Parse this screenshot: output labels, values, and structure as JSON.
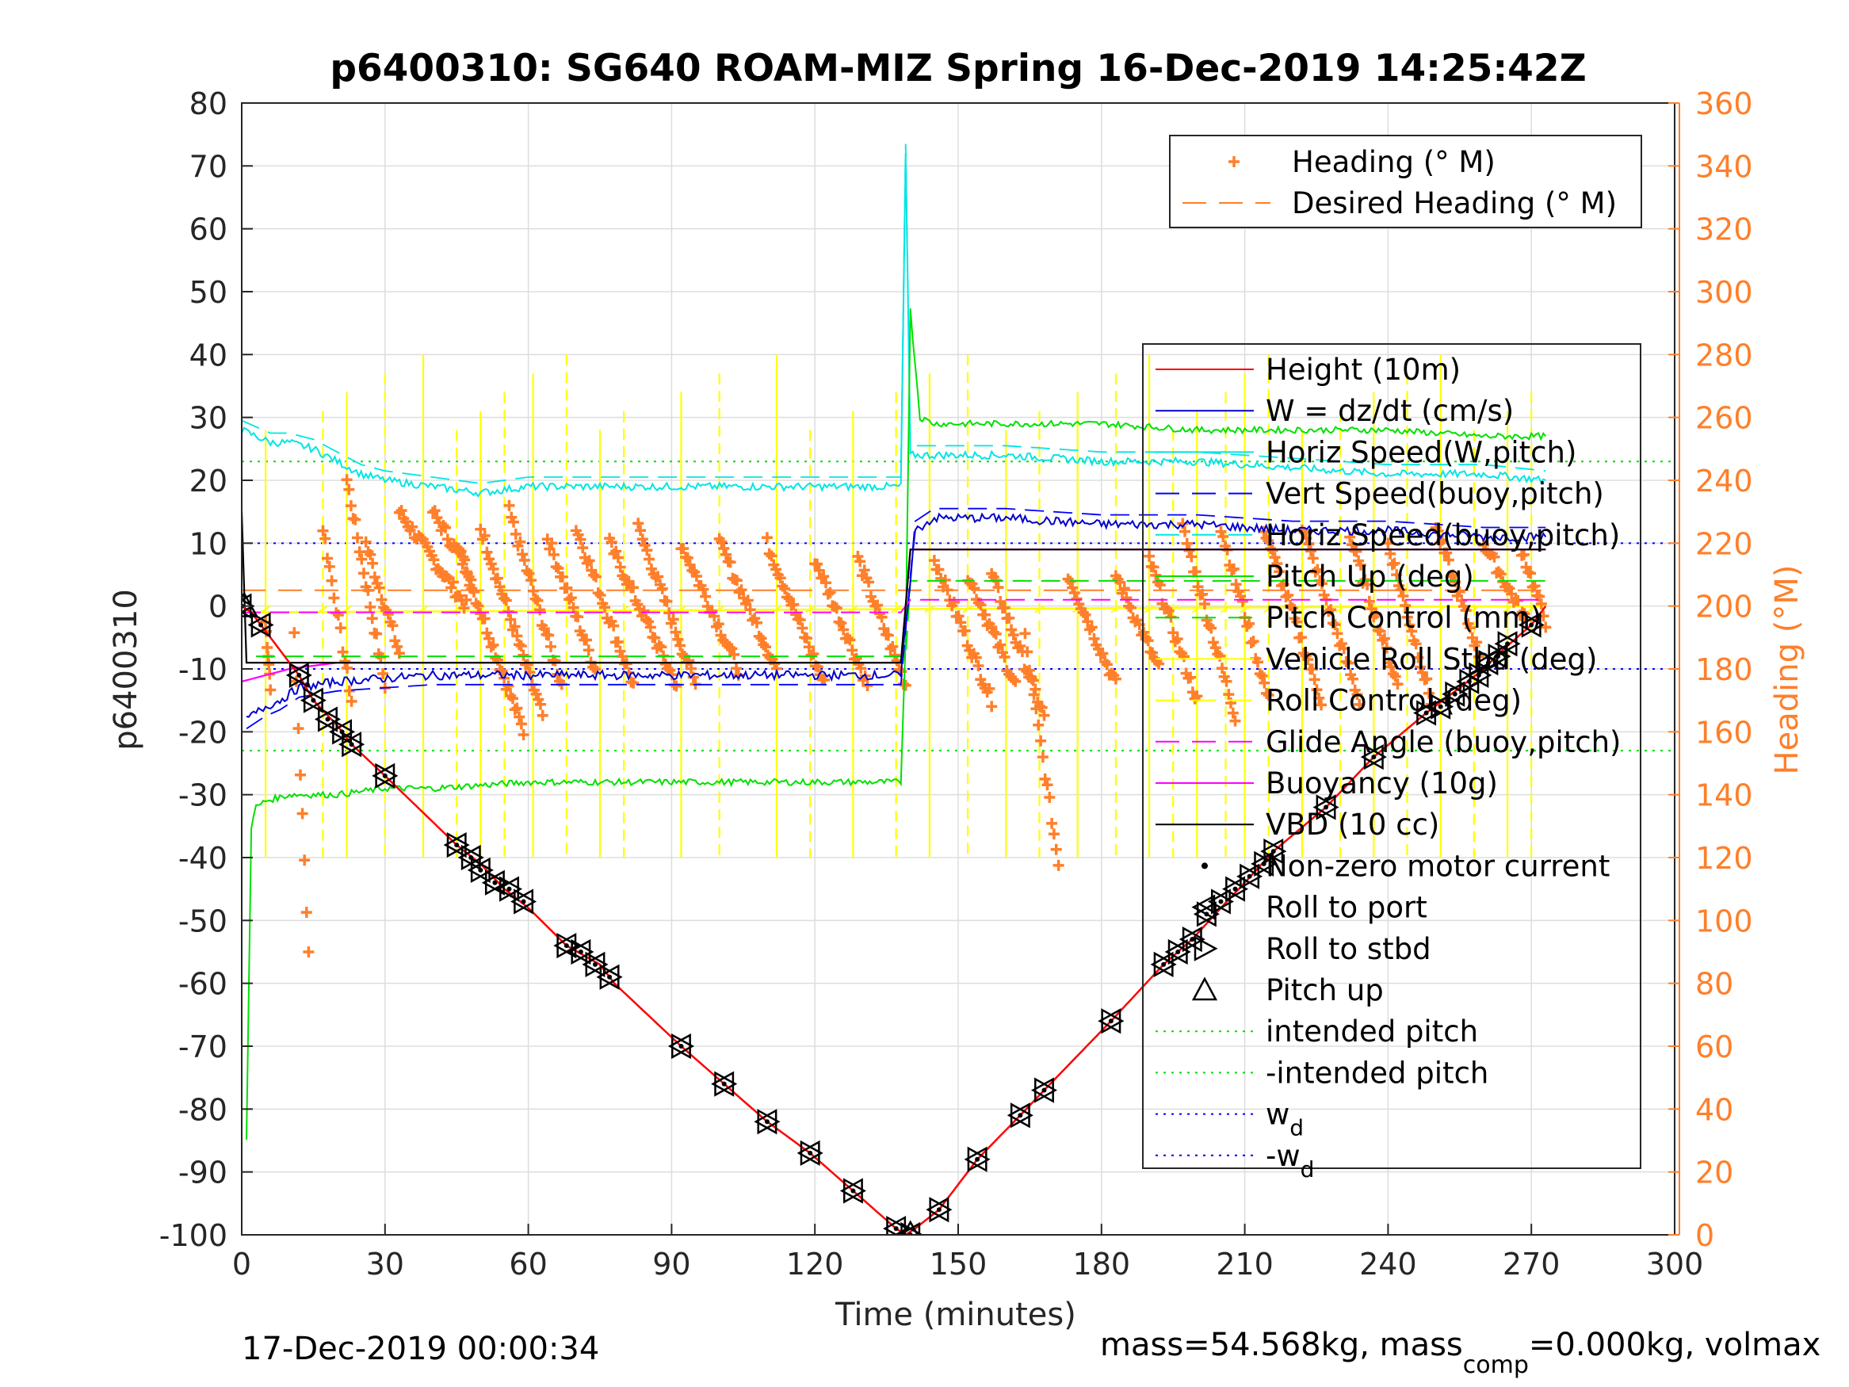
{
  "chart_data": {
    "type": "line",
    "title": "p6400310: SG640 ROAM-MIZ Spring 16-Dec-2019 14:25:42Z",
    "xlabel": "Time (minutes)",
    "ylabel": "p6400310",
    "y2label": "Heading (°M)",
    "xlim": [
      0,
      300
    ],
    "ylim": [
      -100,
      80
    ],
    "y2lim": [
      0,
      360
    ],
    "xticks": [
      "0",
      "30",
      "60",
      "90",
      "120",
      "150",
      "180",
      "210",
      "240",
      "270",
      "300"
    ],
    "yticks": [
      "80",
      "70",
      "60",
      "50",
      "40",
      "30",
      "20",
      "10",
      "0",
      "-10",
      "-20",
      "-30",
      "-40",
      "-50",
      "-60",
      "-70",
      "-80",
      "-90",
      "-100"
    ],
    "y2ticks": [
      "360",
      "340",
      "320",
      "300",
      "280",
      "260",
      "240",
      "220",
      "200",
      "180",
      "160",
      "140",
      "120",
      "100",
      "80",
      "60",
      "40",
      "20",
      "0"
    ],
    "grid": true,
    "footer_left": "17-Dec-2019 00:00:34",
    "footer_right": {
      "prefix": "mass=54.568kg, mass",
      "sub": "comp",
      "suffix": "=0.000kg, volmax"
    },
    "colors": {
      "heading": "#ff7f2a",
      "height": "#ff0000",
      "w": "#0000cc",
      "horiz": "#00e5e5",
      "vert": "#0000ff",
      "pitch": "#00e000",
      "roll": "#ffff00",
      "glide": "#ff00ff",
      "vbd": "#000000"
    },
    "legend_heading": [
      {
        "label": "Heading (° M)",
        "color": "#ff7f2a",
        "style": "plus"
      },
      {
        "label": "Desired Heading (° M)",
        "color": "#ff7f2a",
        "style": "dash"
      }
    ],
    "legend_main": [
      {
        "label": "Height (10m)",
        "color": "#ff0000",
        "style": "line"
      },
      {
        "label": "W = dz/dt (cm/s)",
        "color": "#0000cc",
        "style": "line"
      },
      {
        "label": "Horiz Speed(W,pitch)",
        "color": "#00e5e5",
        "style": "line"
      },
      {
        "label": "Vert Speed(buoy,pitch)",
        "color": "#0000ff",
        "style": "dash"
      },
      {
        "label": "Horiz Speed(buoy,pitch)",
        "color": "#00e5e5",
        "style": "dash"
      },
      {
        "label": "Pitch Up (deg)",
        "color": "#00e000",
        "style": "line"
      },
      {
        "label": "Pitch Control (mm)",
        "color": "#00e000",
        "style": "dash"
      },
      {
        "label": "Vehicle Roll Stbd (deg)",
        "color": "#ffff00",
        "style": "line"
      },
      {
        "label": "Roll Control (deg)",
        "color": "#ffff00",
        "style": "dash"
      },
      {
        "label": "Glide Angle (buoy,pitch)",
        "color": "#ff00ff",
        "style": "dash"
      },
      {
        "label": "Buoyancy (10g)",
        "color": "#ff00ff",
        "style": "line"
      },
      {
        "label": "VBD (10 cc)",
        "color": "#000000",
        "style": "line"
      },
      {
        "label": "Non-zero motor current",
        "color": "#000000",
        "style": "dot"
      },
      {
        "label": "Roll to port",
        "color": "#000000",
        "style": "tri-left"
      },
      {
        "label": "Roll to stbd",
        "color": "#000000",
        "style": "tri-right"
      },
      {
        "label": "Pitch up",
        "color": "#000000",
        "style": "tri-up"
      },
      {
        "label": "intended pitch",
        "color": "#00e000",
        "style": "dot-line"
      },
      {
        "label": "-intended pitch",
        "color": "#00e000",
        "style": "dot-line"
      },
      {
        "label": "w",
        "sub": "d",
        "color": "#0000ff",
        "style": "dot-line"
      },
      {
        "label": "-w",
        "sub": "d",
        "color": "#0000ff",
        "style": "dot-line"
      }
    ],
    "reference_lines": {
      "intended_pitch": 23,
      "w_d": 10
    },
    "height_profile": [
      [
        0,
        0
      ],
      [
        2,
        -1
      ],
      [
        4,
        -3
      ],
      [
        12,
        -11
      ],
      [
        15,
        -15
      ],
      [
        20,
        -19
      ],
      [
        23,
        -22
      ],
      [
        30,
        -27
      ],
      [
        45,
        -38
      ],
      [
        50,
        -41
      ],
      [
        55,
        -45
      ],
      [
        60,
        -48
      ],
      [
        68,
        -54
      ],
      [
        75,
        -57
      ],
      [
        78,
        -60
      ],
      [
        92,
        -70
      ],
      [
        101,
        -76
      ],
      [
        110,
        -82
      ],
      [
        119,
        -87
      ],
      [
        128,
        -93
      ],
      [
        137,
        -99
      ],
      [
        139,
        -100
      ],
      [
        141,
        -99
      ],
      [
        146,
        -96
      ],
      [
        154,
        -88
      ],
      [
        163,
        -81
      ],
      [
        168,
        -77
      ],
      [
        182,
        -66
      ],
      [
        193,
        -57
      ],
      [
        199,
        -53
      ],
      [
        205,
        -48
      ],
      [
        210,
        -44
      ],
      [
        216,
        -39
      ],
      [
        227,
        -32
      ],
      [
        237,
        -24
      ],
      [
        248,
        -17
      ],
      [
        255,
        -13
      ],
      [
        260,
        -10
      ],
      [
        264,
        -7
      ],
      [
        270,
        -3
      ],
      [
        273,
        0
      ]
    ],
    "markers": [
      [
        0,
        0
      ],
      [
        4,
        -3
      ],
      [
        12,
        -11
      ],
      [
        15,
        -15
      ],
      [
        18,
        -18
      ],
      [
        21,
        -20
      ],
      [
        23,
        -22
      ],
      [
        30,
        -27
      ],
      [
        45,
        -38
      ],
      [
        48,
        -40
      ],
      [
        50,
        -42
      ],
      [
        53,
        -44
      ],
      [
        56,
        -45
      ],
      [
        59,
        -47
      ],
      [
        68,
        -54
      ],
      [
        71,
        -55
      ],
      [
        74,
        -57
      ],
      [
        77,
        -59
      ],
      [
        92,
        -70
      ],
      [
        101,
        -76
      ],
      [
        110,
        -82
      ],
      [
        119,
        -87
      ],
      [
        128,
        -93
      ],
      [
        137,
        -99
      ],
      [
        140,
        -100
      ],
      [
        146,
        -96
      ],
      [
        154,
        -88
      ],
      [
        163,
        -81
      ],
      [
        168,
        -77
      ],
      [
        182,
        -66
      ],
      [
        193,
        -57
      ],
      [
        196,
        -55
      ],
      [
        199,
        -53
      ],
      [
        202,
        -49
      ],
      [
        205,
        -47
      ],
      [
        208,
        -45
      ],
      [
        211,
        -43
      ],
      [
        214,
        -41
      ],
      [
        216,
        -39
      ],
      [
        227,
        -32
      ],
      [
        237,
        -24
      ],
      [
        248,
        -17
      ],
      [
        251,
        -16
      ],
      [
        254,
        -14
      ],
      [
        257,
        -12
      ],
      [
        259,
        -11
      ],
      [
        261,
        -9
      ],
      [
        263,
        -8
      ],
      [
        265,
        -6
      ],
      [
        270,
        -3
      ]
    ],
    "w_profile": [
      [
        1,
        -18
      ],
      [
        3,
        -17
      ],
      [
        5,
        -16
      ],
      [
        8,
        -15
      ],
      [
        12,
        -13
      ],
      [
        20,
        -12
      ],
      [
        40,
        -11
      ],
      [
        60,
        -11
      ],
      [
        80,
        -11
      ],
      [
        100,
        -11
      ],
      [
        120,
        -11
      ],
      [
        138,
        -11
      ],
      [
        141,
        12
      ],
      [
        145,
        14
      ],
      [
        160,
        14
      ],
      [
        180,
        13
      ],
      [
        200,
        13
      ],
      [
        220,
        12
      ],
      [
        240,
        12
      ],
      [
        260,
        11
      ],
      [
        273,
        11
      ]
    ],
    "horiz_profile": [
      [
        0,
        28
      ],
      [
        3,
        27
      ],
      [
        6,
        26
      ],
      [
        10,
        26
      ],
      [
        15,
        25
      ],
      [
        20,
        23
      ],
      [
        25,
        21
      ],
      [
        30,
        20
      ],
      [
        40,
        19
      ],
      [
        50,
        18
      ],
      [
        60,
        19
      ],
      [
        70,
        19
      ],
      [
        80,
        19
      ],
      [
        90,
        19
      ],
      [
        100,
        19
      ],
      [
        110,
        19
      ],
      [
        120,
        19
      ],
      [
        130,
        19
      ],
      [
        138,
        19
      ],
      [
        139,
        72
      ],
      [
        140,
        24
      ],
      [
        143,
        24
      ],
      [
        160,
        24
      ],
      [
        180,
        23
      ],
      [
        200,
        23
      ],
      [
        220,
        22
      ],
      [
        240,
        21
      ],
      [
        260,
        21
      ],
      [
        273,
        20
      ]
    ],
    "pitch_profile": [
      [
        1,
        -85
      ],
      [
        2,
        -35
      ],
      [
        3,
        -32
      ],
      [
        5,
        -31
      ],
      [
        10,
        -30
      ],
      [
        20,
        -30
      ],
      [
        30,
        -29
      ],
      [
        40,
        -29
      ],
      [
        60,
        -28
      ],
      [
        80,
        -28
      ],
      [
        100,
        -28
      ],
      [
        120,
        -28
      ],
      [
        138,
        -28
      ],
      [
        139,
        -5
      ],
      [
        140,
        47
      ],
      [
        142,
        30
      ],
      [
        145,
        29
      ],
      [
        160,
        29
      ],
      [
        180,
        29
      ],
      [
        200,
        28
      ],
      [
        220,
        28
      ],
      [
        240,
        28
      ],
      [
        260,
        27
      ],
      [
        273,
        27
      ]
    ],
    "vbd_profile": [
      [
        0,
        15
      ],
      [
        1,
        -9
      ],
      [
        20,
        -9
      ],
      [
        40,
        -9
      ],
      [
        60,
        -9
      ],
      [
        80,
        -9
      ],
      [
        100,
        -9
      ],
      [
        120,
        -9
      ],
      [
        138,
        -9
      ],
      [
        140,
        9
      ],
      [
        160,
        9
      ],
      [
        180,
        9
      ],
      [
        200,
        9
      ],
      [
        220,
        9
      ],
      [
        240,
        9
      ],
      [
        260,
        9
      ],
      [
        273,
        9
      ]
    ],
    "buoy_profile": [
      [
        0,
        -12
      ],
      [
        5,
        -11
      ],
      [
        10,
        -10
      ],
      [
        20,
        -9
      ],
      [
        60,
        -9
      ],
      [
        100,
        -9
      ],
      [
        138,
        -9
      ],
      [
        140,
        9
      ],
      [
        273,
        9
      ]
    ],
    "glide_profile": [
      [
        0,
        -1
      ],
      [
        138,
        -1
      ],
      [
        140,
        1
      ],
      [
        273,
        1
      ]
    ],
    "roll_spikes": [
      5,
      17,
      22,
      30,
      38,
      45,
      50,
      55,
      61,
      68,
      75,
      80,
      92,
      100,
      112,
      119,
      128,
      137,
      144,
      152,
      160,
      167,
      175,
      183,
      190,
      195,
      200,
      206,
      210,
      215,
      222,
      230,
      237,
      244,
      251,
      258,
      265,
      270
    ],
    "heading_segments": [
      [
        5,
        195,
        1,
        175
      ],
      [
        11,
        190,
        3,
        90
      ],
      [
        17,
        225,
        6,
        170
      ],
      [
        22,
        240,
        8,
        175
      ],
      [
        26,
        220,
        7,
        185
      ],
      [
        33,
        230,
        14,
        200
      ],
      [
        40,
        230,
        8,
        210
      ],
      [
        45,
        220,
        14,
        160
      ],
      [
        50,
        225,
        13,
        165
      ],
      [
        56,
        230,
        11,
        175
      ],
      [
        64,
        222,
        10,
        180
      ],
      [
        70,
        225,
        12,
        175
      ],
      [
        77,
        220,
        14,
        175
      ],
      [
        83,
        225,
        12,
        175
      ],
      [
        92,
        220,
        12,
        180
      ],
      [
        100,
        220,
        12,
        180
      ],
      [
        110,
        220,
        12,
        175
      ],
      [
        120,
        215,
        11,
        175
      ],
      [
        129,
        215,
        10,
        175
      ],
      [
        145,
        215,
        12,
        170
      ],
      [
        152,
        210,
        10,
        175
      ],
      [
        157,
        210,
        11,
        165
      ],
      [
        164,
        190,
        7,
        118
      ],
      [
        173,
        210,
        10,
        175
      ],
      [
        183,
        210,
        9,
        180
      ],
      [
        190,
        215,
        10,
        170
      ],
      [
        197,
        225,
        11,
        165
      ],
      [
        205,
        225,
        10,
        170
      ],
      [
        214,
        225,
        12,
        170
      ],
      [
        222,
        225,
        12,
        170
      ],
      [
        232,
        222,
        10,
        175
      ],
      [
        240,
        220,
        9,
        170
      ],
      [
        250,
        225,
        9,
        185
      ],
      [
        260,
        220,
        9,
        195
      ],
      [
        268,
        218,
        5,
        195
      ]
    ],
    "desired_heading": [
      [
        0,
        205
      ],
      [
        140,
        205
      ],
      [
        140,
        205
      ],
      [
        273,
        205
      ]
    ]
  }
}
